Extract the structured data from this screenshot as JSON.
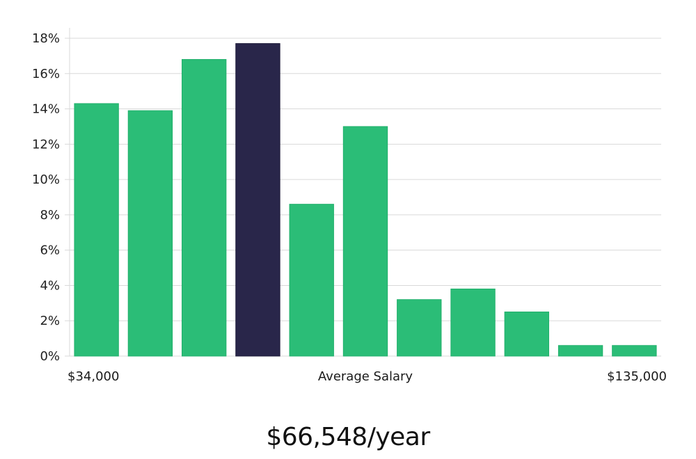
{
  "chart_data": {
    "type": "bar",
    "values": [
      14.3,
      13.9,
      16.8,
      17.7,
      8.6,
      13.0,
      3.2,
      3.8,
      2.5,
      0.6,
      0.6
    ],
    "highlight_index": 3,
    "ylim": [
      0,
      18
    ],
    "y_ticks": [
      0,
      2,
      4,
      6,
      8,
      10,
      12,
      14,
      16,
      18
    ],
    "y_tick_suffix": "%",
    "grid": true,
    "x_min_label": "$34,000",
    "x_center_label": "Average Salary",
    "x_max_label": "$135,000",
    "colors": {
      "bar": "#2bbd77",
      "highlight": "#29264a"
    }
  },
  "summary": {
    "salary": "$66,548/year"
  }
}
